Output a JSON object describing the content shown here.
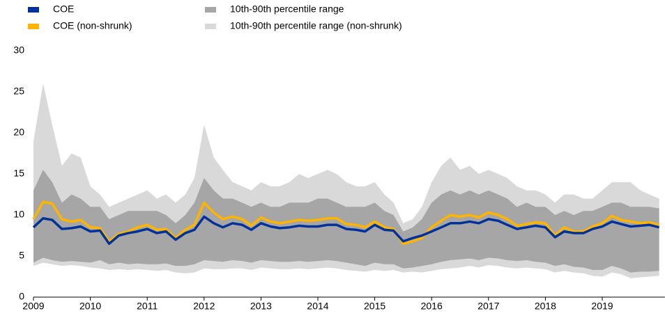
{
  "chart_data": {
    "type": "line",
    "x": [
      2009,
      2009.17,
      2009.33,
      2009.5,
      2009.67,
      2009.83,
      2010,
      2010.17,
      2010.33,
      2010.5,
      2010.67,
      2010.83,
      2011,
      2011.17,
      2011.33,
      2011.5,
      2011.67,
      2011.83,
      2012,
      2012.17,
      2012.33,
      2012.5,
      2012.67,
      2012.83,
      2013,
      2013.17,
      2013.33,
      2013.5,
      2013.67,
      2013.83,
      2014,
      2014.17,
      2014.33,
      2014.5,
      2014.67,
      2014.83,
      2015,
      2015.17,
      2015.33,
      2015.5,
      2015.67,
      2015.83,
      2016,
      2016.17,
      2016.33,
      2016.5,
      2016.67,
      2016.83,
      2017,
      2017.17,
      2017.33,
      2017.5,
      2017.67,
      2017.83,
      2018,
      2018.17,
      2018.33,
      2018.5,
      2018.67,
      2018.83,
      2019,
      2019.17,
      2019.33,
      2019.5,
      2019.67,
      2019.83,
      2020
    ],
    "series": [
      {
        "name": "COE",
        "color": "#003299",
        "values": [
          8.5,
          9.6,
          9.4,
          8.3,
          8.4,
          8.6,
          8.0,
          8.1,
          6.5,
          7.5,
          7.8,
          8.0,
          8.3,
          7.8,
          8.0,
          7.0,
          7.8,
          8.2,
          9.8,
          9.0,
          8.5,
          9.0,
          8.8,
          8.2,
          9.0,
          8.6,
          8.4,
          8.5,
          8.7,
          8.6,
          8.6,
          8.8,
          8.8,
          8.3,
          8.2,
          8.0,
          8.8,
          8.2,
          8.1,
          6.8,
          7.2,
          7.5,
          8.0,
          8.5,
          9.0,
          9.0,
          9.2,
          9.0,
          9.5,
          9.3,
          8.8,
          8.3,
          8.5,
          8.7,
          8.5,
          7.3,
          8.0,
          7.8,
          7.8,
          8.3,
          8.6,
          9.2,
          8.9,
          8.6,
          8.7,
          8.8,
          8.5
        ]
      },
      {
        "name": "COE (non-shrunk)",
        "color": "#ffb400",
        "values": [
          9.5,
          11.6,
          11.4,
          9.5,
          9.2,
          9.4,
          8.5,
          8.4,
          6.8,
          7.7,
          8.0,
          8.5,
          8.8,
          8.2,
          8.3,
          7.2,
          8.2,
          8.8,
          11.5,
          10.3,
          9.5,
          9.8,
          9.5,
          8.7,
          9.7,
          9.2,
          9.0,
          9.2,
          9.4,
          9.3,
          9.4,
          9.6,
          9.6,
          8.9,
          8.8,
          8.5,
          9.2,
          8.5,
          8.3,
          6.5,
          6.8,
          7.2,
          8.5,
          9.3,
          10.0,
          9.8,
          10.0,
          9.7,
          10.3,
          10.0,
          9.5,
          8.7,
          8.9,
          9.1,
          9.0,
          7.5,
          8.5,
          8.0,
          8.0,
          8.6,
          9.0,
          9.9,
          9.4,
          9.2,
          9.0,
          9.1,
          8.8
        ]
      }
    ],
    "bands": [
      {
        "name": "10th-90th percentile range",
        "color": "#a6a6a6",
        "low": [
          4.2,
          4.8,
          4.5,
          4.3,
          4.4,
          4.3,
          4.2,
          4.5,
          4.0,
          4.2,
          4.0,
          4.1,
          4.0,
          4.0,
          4.1,
          3.8,
          3.8,
          4.0,
          4.5,
          4.4,
          4.3,
          4.5,
          4.4,
          4.2,
          4.5,
          4.4,
          4.3,
          4.3,
          4.4,
          4.3,
          4.4,
          4.5,
          4.4,
          4.2,
          4.0,
          3.8,
          4.2,
          4.0,
          4.0,
          3.5,
          3.6,
          3.8,
          4.0,
          4.3,
          4.5,
          4.6,
          4.7,
          4.5,
          4.8,
          4.7,
          4.5,
          4.4,
          4.5,
          4.3,
          4.2,
          3.8,
          4.0,
          3.7,
          3.6,
          3.3,
          3.3,
          3.8,
          3.5,
          3.0,
          3.1,
          3.1,
          3.2
        ],
        "high": [
          13.0,
          15.5,
          14.0,
          11.5,
          12.5,
          12.0,
          11.0,
          11.0,
          9.5,
          10.0,
          10.5,
          10.5,
          10.5,
          10.5,
          10.0,
          9.0,
          10.0,
          11.5,
          14.5,
          13.0,
          12.0,
          12.0,
          11.5,
          11.0,
          11.5,
          11.0,
          11.0,
          11.5,
          11.5,
          11.5,
          12.0,
          12.0,
          11.5,
          11.0,
          11.0,
          11.0,
          11.5,
          10.5,
          10.0,
          8.0,
          8.5,
          9.5,
          11.5,
          12.5,
          13.0,
          12.5,
          13.0,
          12.5,
          13.0,
          12.5,
          12.0,
          11.0,
          11.5,
          11.0,
          11.0,
          10.0,
          10.5,
          10.0,
          10.5,
          10.5,
          11.0,
          11.5,
          11.5,
          11.0,
          11.0,
          11.0,
          10.8
        ]
      },
      {
        "name": "10th-90th percentile range (non-shrunk)",
        "color": "#d9d9d9",
        "low": [
          3.8,
          4.2,
          4.0,
          3.8,
          3.9,
          3.8,
          3.6,
          3.5,
          3.3,
          3.4,
          3.3,
          3.4,
          3.3,
          3.2,
          3.3,
          3.0,
          2.9,
          3.0,
          3.5,
          3.4,
          3.4,
          3.5,
          3.5,
          3.3,
          3.6,
          3.5,
          3.4,
          3.4,
          3.5,
          3.4,
          3.5,
          3.6,
          3.5,
          3.3,
          3.2,
          3.1,
          3.3,
          3.2,
          3.3,
          3.0,
          3.1,
          3.0,
          3.2,
          3.4,
          3.5,
          3.6,
          3.8,
          3.6,
          3.9,
          3.8,
          3.6,
          3.5,
          3.6,
          3.5,
          3.4,
          3.0,
          3.2,
          3.0,
          2.9,
          2.6,
          2.5,
          3.0,
          2.8,
          2.3,
          2.4,
          2.5,
          2.6
        ],
        "high": [
          19.0,
          26.0,
          21.0,
          16.0,
          17.5,
          17.0,
          13.5,
          12.5,
          11.0,
          11.5,
          12.0,
          12.5,
          13.0,
          12.0,
          12.5,
          11.5,
          12.5,
          14.5,
          21.0,
          17.0,
          15.5,
          14.0,
          13.5,
          13.0,
          14.0,
          13.5,
          13.5,
          14.0,
          15.0,
          14.5,
          15.0,
          15.5,
          15.0,
          14.0,
          13.5,
          13.5,
          14.0,
          12.5,
          11.5,
          9.0,
          9.5,
          11.0,
          14.0,
          16.0,
          17.0,
          15.5,
          16.0,
          15.0,
          15.5,
          15.0,
          14.5,
          13.5,
          13.0,
          13.0,
          12.5,
          11.5,
          12.5,
          12.5,
          12.0,
          12.0,
          13.0,
          14.0,
          14.0,
          14.0,
          13.0,
          12.5,
          12.0
        ]
      }
    ],
    "xlim": [
      2009,
      2020.1
    ],
    "xticks": [
      2009,
      2010,
      2011,
      2012,
      2013,
      2014,
      2015,
      2016,
      2017,
      2018,
      2019
    ],
    "ylim": [
      0,
      30
    ],
    "yticks": [
      0,
      5,
      10,
      15,
      20,
      25,
      30
    ]
  }
}
